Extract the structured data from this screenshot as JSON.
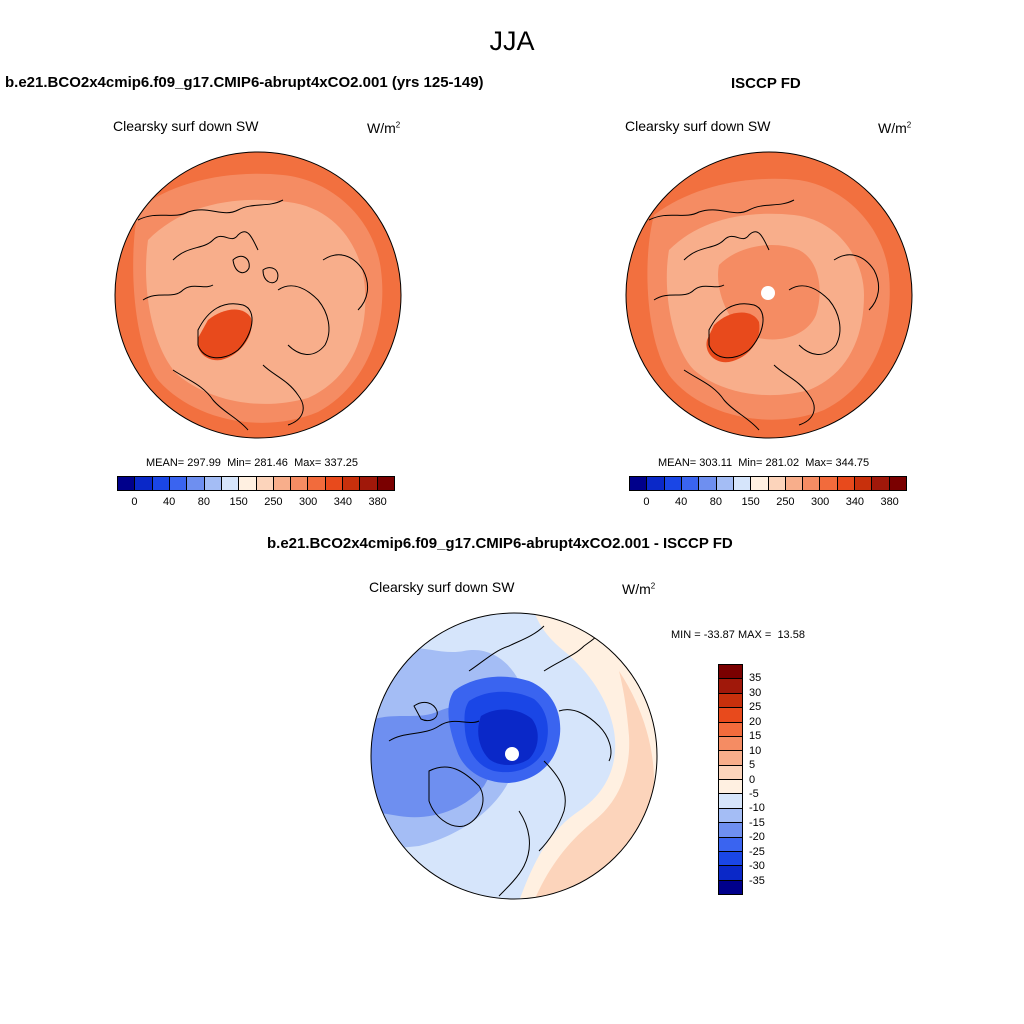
{
  "season": "JJA",
  "panels": {
    "model": {
      "title": "b.e21.BCO2x4cmip6.f09_g17.CMIP6-abrupt4xCO2.001 (yrs 125-149)",
      "variable": "Clearsky surf down SW",
      "units_base": "W/m",
      "units_exp": "2",
      "mean_label": "MEAN=",
      "mean": "297.99",
      "min_label": "Min=",
      "min": "281.46",
      "max_label": "Max=",
      "max": "337.25"
    },
    "obs": {
      "title": "ISCCP FD",
      "variable": "Clearsky surf down SW",
      "units_base": "W/m",
      "units_exp": "2",
      "mean_label": "MEAN=",
      "mean": "303.11",
      "min_label": "Min=",
      "min": "281.02",
      "max_label": "Max=",
      "max": "344.75"
    },
    "diff": {
      "title": "b.e21.BCO2x4cmip6.f09_g17.CMIP6-abrupt4xCO2.001 - ISCCP FD",
      "variable": "Clearsky surf down SW",
      "units_base": "W/m",
      "units_exp": "2",
      "min_label": "MIN =",
      "min": "-33.87",
      "max_label": "MAX =",
      "max": "13.58"
    }
  },
  "abs_colorbar": {
    "colors": [
      "#00008b",
      "#0a28c8",
      "#1a46e6",
      "#3a64f0",
      "#6e8ff0",
      "#a4bdf5",
      "#d6e5fb",
      "#fff0e1",
      "#fcd4bb",
      "#f8ae8b",
      "#f58c63",
      "#f26b3c",
      "#e84a1c",
      "#c8300c",
      "#a0180a",
      "#7a0000"
    ],
    "tick_labels": [
      "0",
      "40",
      "80",
      "150",
      "250",
      "300",
      "340",
      "380"
    ]
  },
  "diff_colorbar": {
    "colors": [
      "#7a0000",
      "#a0180a",
      "#c8300c",
      "#e84a1c",
      "#f26b3c",
      "#f58c63",
      "#f8ae8b",
      "#fcd4bb",
      "#fff0e1",
      "#d6e5fb",
      "#a4bdf5",
      "#6e8ff0",
      "#3a64f0",
      "#1a46e6",
      "#0a28c8",
      "#00008b"
    ],
    "tick_labels": [
      "35",
      "30",
      "25",
      "20",
      "15",
      "10",
      "5",
      "0",
      "-5",
      "-10",
      "-15",
      "-20",
      "-25",
      "-30",
      "-35"
    ]
  },
  "map_colors": {
    "outer": "#f2703f",
    "mid": "#f58c63",
    "inner": "#f8ae8b",
    "greenland": "#e84a1c",
    "diff_base": "#d6e5fb",
    "diff_light": "#a4bdf5",
    "diff_mid": "#6e8ff0",
    "diff_deep": "#3a64f0",
    "diff_deeper": "#1a46e6",
    "diff_core": "#0a28c8",
    "diff_warm": "#fcd4bb",
    "diff_warmer": "#fff0e1"
  }
}
